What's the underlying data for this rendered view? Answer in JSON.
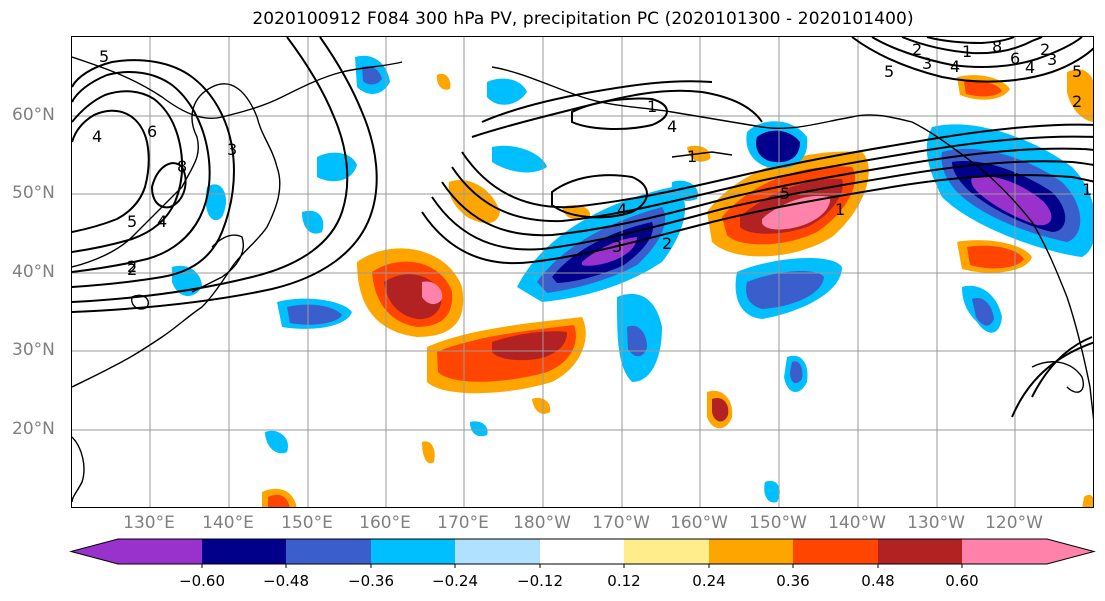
{
  "title": "2020100912 F084 300 hPa PV, precipitation PC (2020101300 - 2020101400)",
  "longitude_labels": [
    "130°E",
    "140°E",
    "150°E",
    "160°E",
    "170°E",
    "180°W",
    "170°W",
    "160°W",
    "150°W",
    "140°W",
    "130°W",
    "120°W"
  ],
  "latitude_labels": [
    "60°N",
    "50°N",
    "40°N",
    "30°N",
    "20°N"
  ],
  "colorbar": {
    "tick_labels": [
      "−0.60",
      "−0.48",
      "−0.36",
      "−0.24",
      "−0.12",
      "0.12",
      "0.24",
      "0.36",
      "0.48",
      "0.60"
    ],
    "colors": [
      "#9932cc",
      "#00008b",
      "#3a5fcd",
      "#00bfff",
      "#b0e2ff",
      "#ffffff",
      "#ffec8b",
      "#ffa500",
      "#ff4500",
      "#b22222",
      "#ff82ab"
    ]
  },
  "contour_labels": [
    "5",
    "4",
    "6",
    "8",
    "3",
    "2",
    "5",
    "4",
    "2",
    "1",
    "4",
    "1",
    "4",
    "3",
    "2",
    "5",
    "1",
    "2",
    "1",
    "4",
    "3",
    "2",
    "5",
    "8",
    "6",
    "4",
    "3",
    "2",
    "1",
    "5"
  ],
  "colors": {
    "gridline": "#9a9a9a",
    "axis_label": "#808080",
    "contour": "#000000"
  }
}
